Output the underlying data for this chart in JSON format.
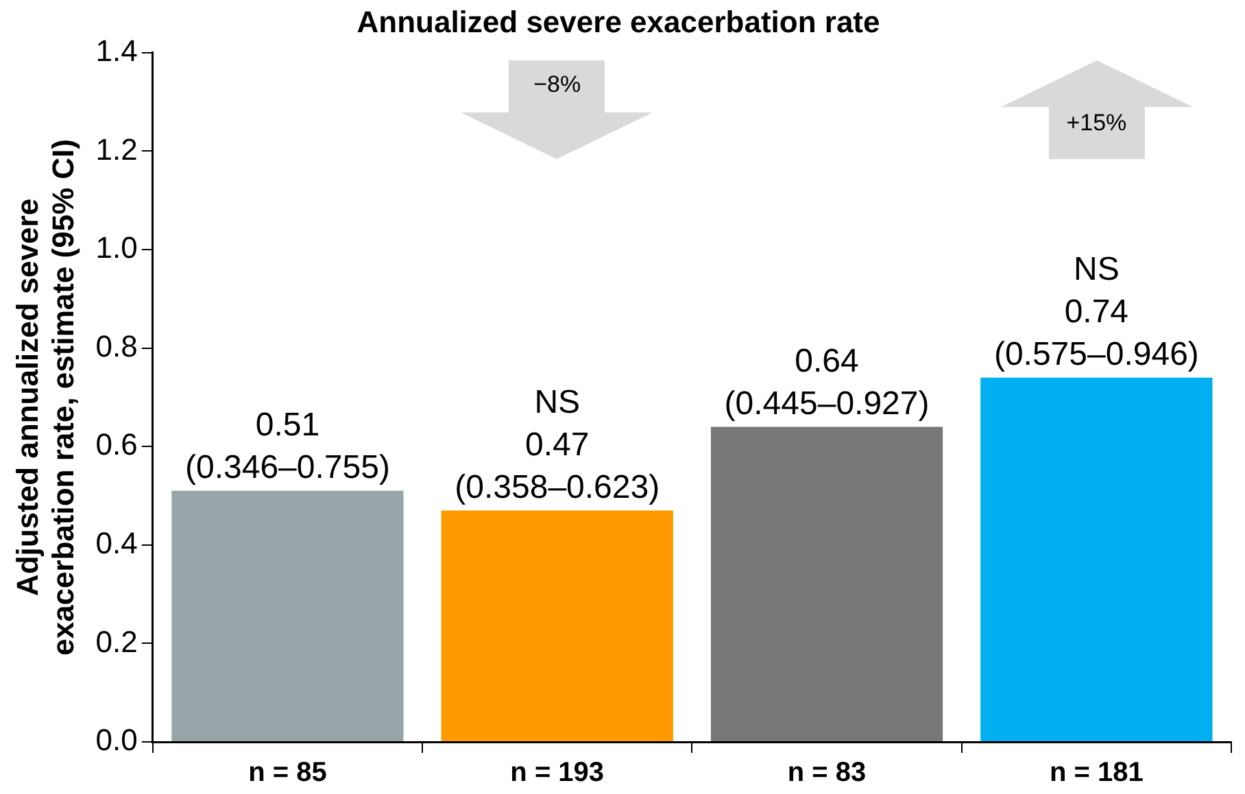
{
  "chart_data": {
    "type": "bar",
    "title": "Annualized severe exacerbation rate",
    "ylabel": "Adjusted annualized severe\nexacerbation rate, estimate (95% CI)",
    "categories": [
      "n = 85",
      "n = 193",
      "n = 83",
      "n = 181"
    ],
    "values": [
      0.51,
      0.47,
      0.64,
      0.74
    ],
    "colors": [
      "#98a5a8",
      "#ff9900",
      "#777777",
      "#00b0f0"
    ],
    "value_labels": [
      "0.51\n(0.346–0.755)",
      "NS\n0.47\n(0.358–0.623)",
      "0.64\n(0.445–0.927)",
      "NS\n0.74\n(0.575–0.946)"
    ],
    "annotations": [
      "−8%",
      "+15%"
    ],
    "ylim": [
      0,
      1.4
    ],
    "yticks": [
      {
        "value": 0,
        "label": "0.0"
      },
      {
        "value": 0.2,
        "label": "0.2"
      },
      {
        "value": 0.4,
        "label": "0.4"
      },
      {
        "value": 0.6,
        "label": "0.6"
      },
      {
        "value": 0.8,
        "label": "0.8"
      },
      {
        "value": 1,
        "label": "1.0"
      },
      {
        "value": 1.2,
        "label": "1.2"
      },
      {
        "value": 1.4,
        "label": "1.4"
      }
    ],
    "grid": false,
    "legend": false
  }
}
